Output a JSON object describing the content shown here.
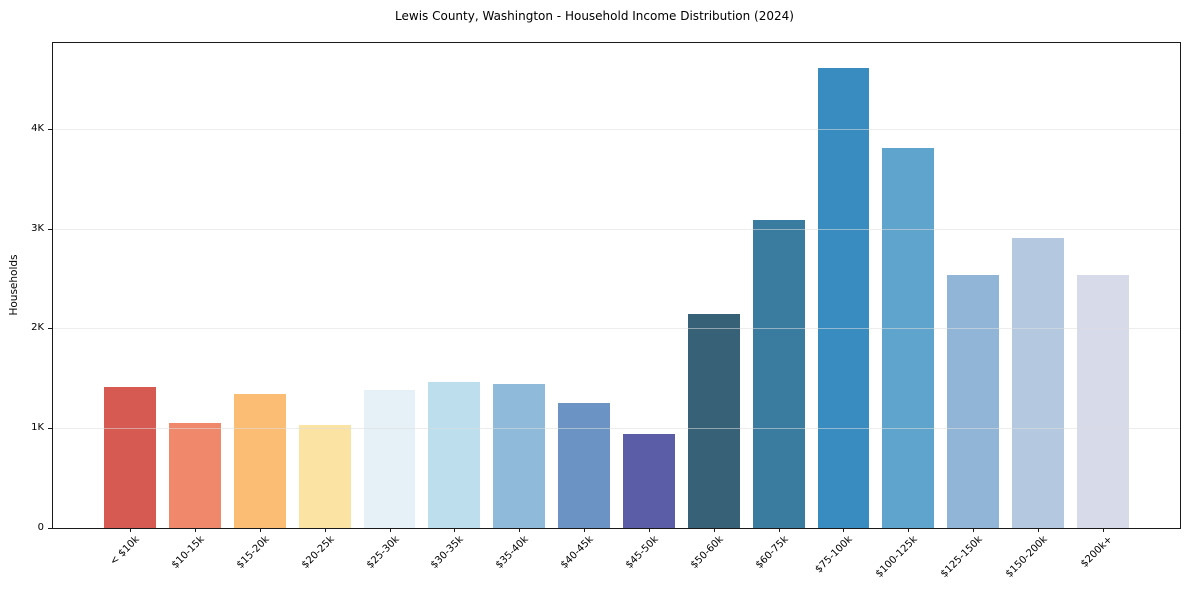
{
  "title": "Lewis County, Washington - Household Income Distribution (2024)",
  "chart_data": {
    "type": "bar",
    "title": "Lewis County, Washington - Household Income Distribution (2024)",
    "xlabel": "",
    "ylabel": "Households",
    "categories": [
      "< $10k",
      "$10-15k",
      "$15-20k",
      "$20-25k",
      "$25-30k",
      "$30-35k",
      "$35-40k",
      "$40-45k",
      "$45-50k",
      "$50-60k",
      "$60-75k",
      "$75-100k",
      "$100-125k",
      "$125-150k",
      "$150-200k",
      "$200k+"
    ],
    "values": [
      1410,
      1050,
      1340,
      1030,
      1380,
      1460,
      1440,
      1250,
      940,
      2140,
      3090,
      4610,
      3810,
      2540,
      2910,
      2540
    ],
    "bar_colors": [
      "#d65a52",
      "#f0896b",
      "#fbbd74",
      "#fbe3a3",
      "#e5f1f6",
      "#bcdeed",
      "#8fbad9",
      "#6b93c4",
      "#5b5ea6",
      "#366176",
      "#3a7ba0",
      "#388cc0",
      "#5ea4cd",
      "#90b5d6",
      "#b4c8e0",
      "#d7dae8"
    ],
    "ytick_labels": [
      "0",
      "1K",
      "2K",
      "3K",
      "4K"
    ],
    "ytick_values": [
      0,
      1000,
      2000,
      3000,
      4000
    ],
    "ylim": [
      0,
      4860
    ],
    "grid": "horizontal-only, light gray, drawn over bars",
    "legend": "none"
  },
  "colors": {
    "background": "#ffffff",
    "spine": "#1a1a1a",
    "grid": "#e9e9e9",
    "text": "#000000"
  }
}
